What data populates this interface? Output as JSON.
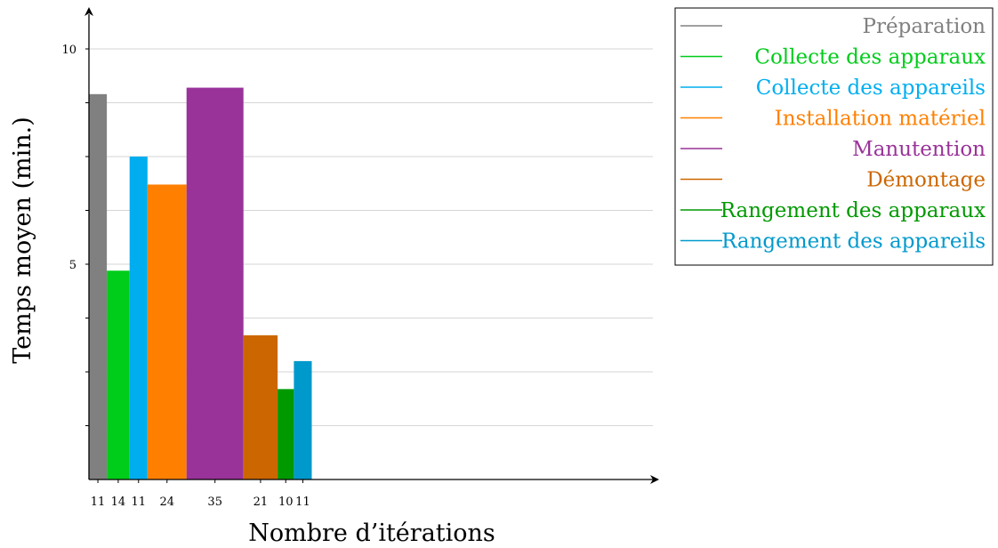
{
  "chart_data": {
    "type": "bar",
    "xlabel": "Nombre d’itérations",
    "ylabel": "Temps moyen (min.)",
    "ylim": [
      0,
      10
    ],
    "yticks": [
      5,
      10
    ],
    "grid": true,
    "legend_position": "top-right",
    "series": [
      {
        "name": "Préparation",
        "iterations": 11,
        "value": 8.95,
        "color": "#808080"
      },
      {
        "name": "Collecte des apparaux",
        "iterations": 14,
        "value": 4.85,
        "color": "#00cc1a"
      },
      {
        "name": "Collecte des appareils",
        "iterations": 11,
        "value": 7.5,
        "color": "#00aeef"
      },
      {
        "name": "Installation matériel",
        "iterations": 24,
        "value": 6.85,
        "color": "#ff8000"
      },
      {
        "name": "Manutention",
        "iterations": 35,
        "value": 9.1,
        "color": "#993399"
      },
      {
        "name": "Démontage",
        "iterations": 21,
        "value": 3.35,
        "color": "#cc6600"
      },
      {
        "name": "Rangement des apparaux",
        "iterations": 10,
        "value": 2.1,
        "color": "#009900"
      },
      {
        "name": "Rangement des appareils",
        "iterations": 11,
        "value": 2.75,
        "color": "#0099cc"
      }
    ]
  }
}
